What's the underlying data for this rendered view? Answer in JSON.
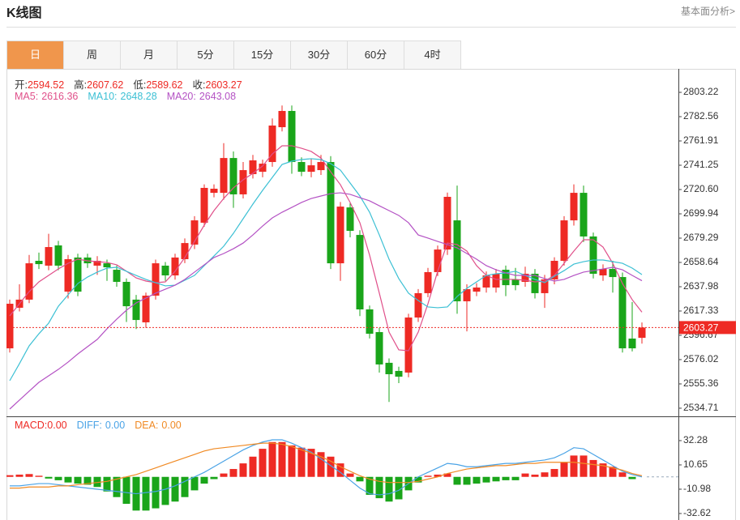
{
  "header": {
    "title": "K线图",
    "link": "基本面分析>"
  },
  "tabs": [
    "日",
    "周",
    "月",
    "5分",
    "15分",
    "30分",
    "60分",
    "4时"
  ],
  "active_tab": 0,
  "chart_data": [
    {
      "type": "candlestick",
      "ohlc_labels": [
        "开:",
        "高:",
        "低:",
        "收:"
      ],
      "up_color": "#ee2a24",
      "down_color": "#1aa51a",
      "open": [
        2585.6,
        2620.1,
        2627.0,
        2660.0,
        2655.9,
        2673.1,
        2633.8,
        2662.8,
        2662.8,
        2655.9,
        2657.9,
        2652.4,
        2642.1,
        2627.0,
        2607.7,
        2630.4,
        2655.9,
        2647.6,
        2661.4,
        2673.8,
        2692.4,
        2717.8,
        2717.8,
        2747.4,
        2716.5,
        2733.7,
        2735.7,
        2744.0,
        2773.6,
        2787.4,
        2744.0,
        2735.7,
        2737.1,
        2744.0,
        2657.9,
        2705.4,
        2682.0,
        2618.7,
        2599.4,
        2573.3,
        2566.4,
        2565.0,
        2611.8,
        2632.5,
        2650.4,
        2669.6,
        2694.4,
        2625.6,
        2633.8,
        2637.3,
        2637.3,
        2652.4,
        2644.2,
        2642.1,
        2649.0,
        2632.5,
        2644.2,
        2660.0,
        2694.4,
        2717.8,
        2680.7,
        2647.6,
        2653.1,
        2646.2,
        2593.9,
        2594.52
      ],
      "high": [
        2627,
        2640,
        2665,
        2667,
        2683,
        2677,
        2665,
        2666,
        2666,
        2664,
        2661,
        2656,
        2645,
        2631,
        2633,
        2661,
        2659,
        2666,
        2679,
        2698,
        2725,
        2725,
        2760,
        2753,
        2744,
        2750,
        2746,
        2781,
        2792,
        2792,
        2748,
        2747,
        2750,
        2749,
        2710,
        2709,
        2686,
        2622,
        2603,
        2577,
        2570,
        2615,
        2636,
        2654,
        2673,
        2718,
        2724,
        2640,
        2641,
        2651,
        2653,
        2656,
        2654,
        2655,
        2653,
        2648,
        2663,
        2698,
        2725,
        2724,
        2684,
        2657,
        2660,
        2650,
        2625,
        2607.62
      ],
      "low": [
        2582,
        2617,
        2624,
        2653,
        2652,
        2652,
        2628,
        2630,
        2654,
        2648,
        2643,
        2638,
        2608,
        2602,
        2603,
        2627,
        2643,
        2644,
        2658,
        2670,
        2689,
        2714,
        2712,
        2705,
        2713,
        2730,
        2731,
        2740,
        2770,
        2734,
        2732,
        2731,
        2733,
        2653,
        2643,
        2680,
        2613,
        2594,
        2565,
        2540,
        2556,
        2561,
        2608,
        2629,
        2647,
        2665,
        2615,
        2600,
        2630,
        2633,
        2633,
        2630,
        2635,
        2638,
        2628,
        2620,
        2640,
        2656,
        2690,
        2676,
        2645,
        2643,
        2633,
        2582,
        2583,
        2589.62
      ],
      "close": [
        2623.5,
        2627.0,
        2657.9,
        2657.2,
        2671.7,
        2655.9,
        2661.4,
        2633.8,
        2657.9,
        2660.0,
        2654.5,
        2642.1,
        2621.4,
        2609.7,
        2630.4,
        2657.9,
        2647.6,
        2662.8,
        2675.1,
        2694.4,
        2722.0,
        2721.3,
        2747.4,
        2716.5,
        2737.1,
        2745.4,
        2742.6,
        2775.0,
        2787.4,
        2744.0,
        2735.7,
        2741.2,
        2744.0,
        2657.9,
        2706.1,
        2685.5,
        2618.7,
        2598.0,
        2571.9,
        2563.6,
        2561.5,
        2611.8,
        2632.5,
        2650.4,
        2669.6,
        2714.4,
        2625.6,
        2635.9,
        2637.3,
        2647.6,
        2649.0,
        2639.3,
        2639.3,
        2649.0,
        2632.5,
        2644.2,
        2660.0,
        2694.4,
        2717.8,
        2680.7,
        2649.0,
        2653.1,
        2646.2,
        2585.6,
        2585.6,
        2603.27
      ],
      "series": [
        {
          "name": "MA5:",
          "color": "#e0508a",
          "values": [
            2613.2,
            2623.5,
            2633.8,
            2642.1,
            2647.6,
            2653.1,
            2657.9,
            2661.4,
            2660.0,
            2659.3,
            2658.6,
            2656.6,
            2651.1,
            2645.5,
            2642.8,
            2641.4,
            2642.1,
            2651.1,
            2662.8,
            2676.5,
            2690.3,
            2702.7,
            2713.0,
            2722.0,
            2728.9,
            2734.4,
            2740.6,
            2750.9,
            2757.8,
            2757.8,
            2755.7,
            2753.0,
            2747.4,
            2735.7,
            2724.7,
            2709.6,
            2692.4,
            2664.8,
            2632.5,
            2599.4,
            2584.3,
            2583.6,
            2599.4,
            2623.5,
            2651.1,
            2675.1,
            2673.8,
            2668.3,
            2655.9,
            2647.6,
            2644.2,
            2644.2,
            2644.2,
            2643.5,
            2642.1,
            2642.8,
            2647.6,
            2657.9,
            2668.3,
            2677.9,
            2677.9,
            2671.7,
            2657.9,
            2640.7,
            2627.0,
            2616.36
          ]
        },
        {
          "name": "MA10:",
          "color": "#3cc0d4",
          "values": [
            2558.1,
            2572.6,
            2587.7,
            2598.0,
            2607.0,
            2621.4,
            2631.1,
            2640.7,
            2646.2,
            2650.4,
            2653.8,
            2654.5,
            2651.1,
            2647.6,
            2644.2,
            2641.4,
            2638.7,
            2639.3,
            2643.5,
            2647.6,
            2655.9,
            2664.1,
            2672.4,
            2683.4,
            2695.8,
            2708.2,
            2719.9,
            2730.9,
            2741.9,
            2744.7,
            2746.1,
            2746.8,
            2746.1,
            2742.6,
            2737.1,
            2726.1,
            2715.1,
            2701.3,
            2682.0,
            2661.4,
            2644.9,
            2632.5,
            2626.3,
            2620.8,
            2620.1,
            2620.8,
            2629.7,
            2636.6,
            2642.1,
            2647.6,
            2649.0,
            2649.7,
            2651.1,
            2647.6,
            2644.2,
            2641.4,
            2646.9,
            2651.7,
            2657.2,
            2659.3,
            2660.7,
            2660.7,
            2659.3,
            2657.9,
            2653.8,
            2648.28
          ]
        },
        {
          "name": "MA20:",
          "color": "#b452c4",
          "values": [
            2534.0,
            2541.6,
            2549.2,
            2556.7,
            2562.2,
            2567.7,
            2573.9,
            2580.8,
            2587.0,
            2593.2,
            2602.2,
            2610.4,
            2618.0,
            2624.2,
            2628.3,
            2632.5,
            2635.9,
            2639.3,
            2644.2,
            2650.4,
            2656.6,
            2662.8,
            2666.2,
            2670.3,
            2675.1,
            2682.0,
            2689.6,
            2696.5,
            2701.3,
            2705.4,
            2709.6,
            2713.0,
            2715.1,
            2717.1,
            2717.8,
            2716.5,
            2713.7,
            2711.0,
            2706.8,
            2702.7,
            2698.6,
            2692.4,
            2682.0,
            2679.3,
            2676.5,
            2673.8,
            2671.0,
            2666.2,
            2661.4,
            2655.9,
            2652.4,
            2649.7,
            2647.6,
            2647.6,
            2647.6,
            2644.9,
            2642.8,
            2644.2,
            2647.6,
            2650.4,
            2651.7,
            2653.1,
            2654.5,
            2652.4,
            2647.6,
            2643.08
          ]
        }
      ],
      "ylim": [
        2527.8,
        2823.2
      ],
      "yticks": [
        2803.22,
        2782.56,
        2761.91,
        2741.25,
        {
          "value": 2720.6,
          "label": "2720.60"
        },
        2699.94,
        2679.29,
        2658.64,
        2637.98,
        2617.33,
        2596.67,
        2576.02,
        2555.36,
        2534.71
      ]
    },
    {
      "type": "bar",
      "name": "MACD:",
      "up_color": "#ee2a24",
      "down_color": "#1aa51a",
      "legend_values": [
        {
          "value": 0,
          "label": "0.00"
        },
        {
          "value": 0,
          "label": "0.00"
        },
        {
          "value": 0,
          "label": "0.00"
        }
      ],
      "values": [
        1.5,
        2,
        2.5,
        1,
        -1.5,
        -3,
        -5,
        -6,
        -7,
        -9,
        -13,
        -18,
        -24,
        -30,
        -30,
        -28,
        -25,
        -22,
        -18,
        -12,
        -6,
        -2,
        3,
        7,
        12,
        18,
        25,
        31,
        31,
        28,
        26,
        25,
        22,
        18,
        12,
        3,
        -4,
        -16,
        -19,
        -22,
        -20,
        -12,
        -5,
        1,
        2,
        3,
        -7,
        -7,
        -6,
        -5,
        -4,
        -3,
        -3,
        3,
        2,
        4,
        7,
        13,
        19,
        19,
        15,
        12,
        9,
        4,
        -2,
        0
      ],
      "series": [
        {
          "name": "DIFF:",
          "color": "#4aa3e6",
          "values": [
            -8,
            -8,
            -7,
            -6,
            -6,
            -7,
            -8,
            -9,
            -10,
            -11,
            -12,
            -13,
            -14,
            -15,
            -14,
            -13,
            -11,
            -8,
            -4,
            0,
            4,
            9,
            14,
            19,
            24,
            28,
            31,
            33,
            33,
            30,
            26,
            22,
            16,
            10,
            4,
            -3,
            -10,
            -15,
            -16,
            -15,
            -12,
            -6,
            0,
            4,
            8,
            12,
            11,
            9,
            9,
            10,
            11,
            12,
            12,
            13,
            14,
            15,
            17,
            21,
            26,
            25,
            20,
            15,
            10,
            5,
            2,
            0
          ]
        },
        {
          "name": "DEA:",
          "color": "#f08a24",
          "values": [
            -10,
            -10,
            -9,
            -9,
            -9,
            -8,
            -8,
            -7,
            -6,
            -5,
            -4,
            -2,
            0,
            2,
            5,
            8,
            11,
            14,
            17,
            20,
            23,
            25,
            26,
            27,
            28,
            29,
            30,
            30,
            29,
            27,
            24,
            21,
            18,
            14,
            9,
            5,
            1,
            -2,
            -4,
            -5,
            -5,
            -5,
            -4,
            -2,
            0,
            3,
            5,
            7,
            8,
            9,
            10,
            10,
            11,
            12,
            12,
            13,
            13,
            13,
            13,
            12,
            11,
            10,
            8,
            6,
            3,
            1
          ]
        }
      ],
      "ylim": [
        -38.4,
        53.9
      ],
      "yticks": [
        32.28,
        10.65,
        -10.98,
        -32.62
      ]
    }
  ]
}
